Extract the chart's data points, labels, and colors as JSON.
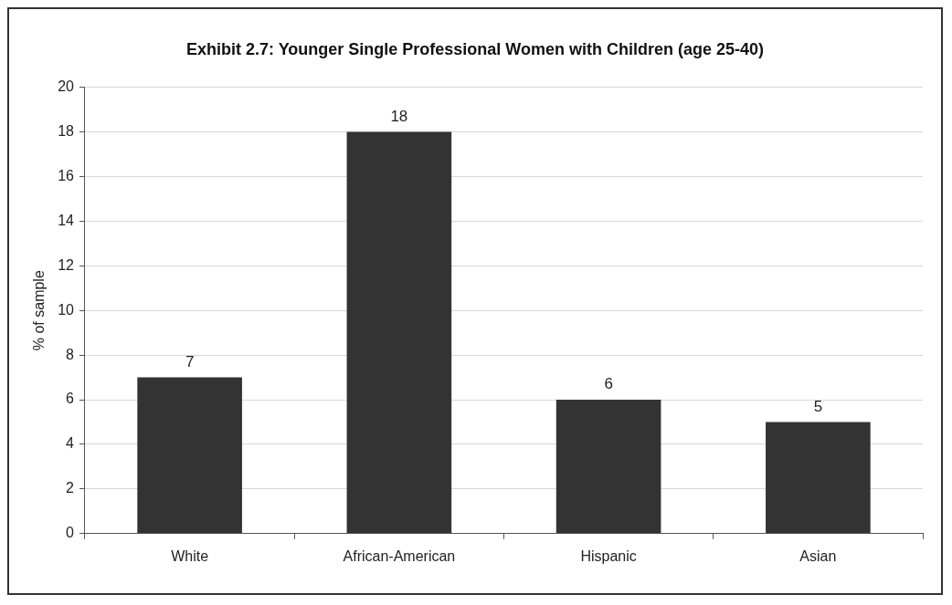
{
  "chart_data": {
    "type": "bar",
    "title": "Exhibit 2.7: Younger Single Professional Women with Children (age 25-40)",
    "ylabel": "% of sample",
    "categories": [
      "White",
      "African-American",
      "Hispanic",
      "Asian"
    ],
    "values": [
      7,
      18,
      6,
      5
    ],
    "color": "#333333",
    "ylim": [
      0,
      20
    ],
    "yticks": [
      0,
      2,
      4,
      6,
      8,
      10,
      12,
      14,
      16,
      18,
      20
    ],
    "grid": "y",
    "data_labels": true,
    "legend": false
  }
}
